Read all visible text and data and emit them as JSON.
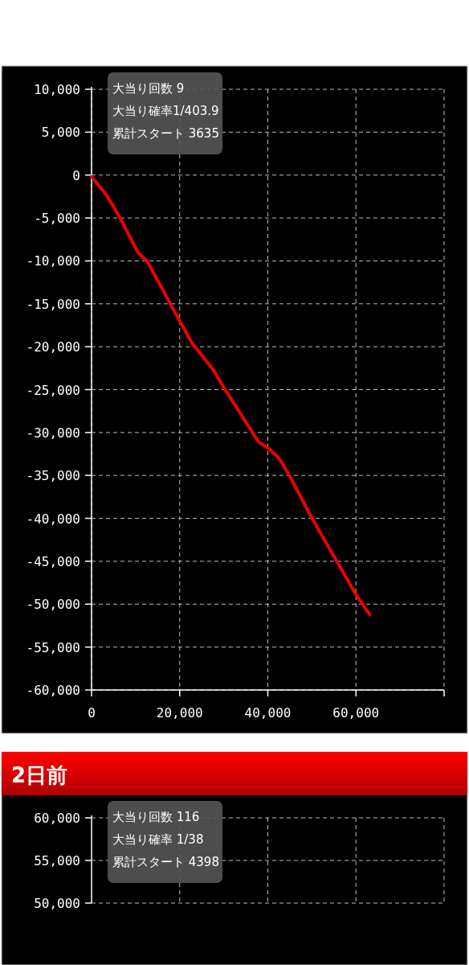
{
  "chart_data": [
    {
      "type": "line",
      "xlim": [
        0,
        80000
      ],
      "ylim": [
        -60000,
        10000
      ],
      "xticks": [
        {
          "value": 0,
          "label": "0"
        },
        {
          "value": 20000,
          "label": "20,000"
        },
        {
          "value": 40000,
          "label": "40,000"
        },
        {
          "value": 60000,
          "label": "60,000"
        },
        {
          "value": 80000,
          "label": null
        }
      ],
      "yticks": [
        {
          "value": 10000,
          "label": "10,000"
        },
        {
          "value": 5000,
          "label": "5,000"
        },
        {
          "value": 0,
          "label": "0"
        },
        {
          "value": -5000,
          "label": "-5,000"
        },
        {
          "value": -10000,
          "label": "-10,000"
        },
        {
          "value": -15000,
          "label": "-15,000"
        },
        {
          "value": -20000,
          "label": "-20,000"
        },
        {
          "value": -25000,
          "label": "-25,000"
        },
        {
          "value": -30000,
          "label": "-30,000"
        },
        {
          "value": -35000,
          "label": "-35,000"
        },
        {
          "value": -40000,
          "label": "-40,000"
        },
        {
          "value": -45000,
          "label": "-45,000"
        },
        {
          "value": -50000,
          "label": "-50,000"
        },
        {
          "value": -55000,
          "label": "-55,000"
        },
        {
          "value": -60000,
          "label": "-60,000"
        }
      ],
      "grid": true,
      "marker": "none",
      "line_style": "solid",
      "annotations": [
        "大当り回数 9",
        "大当り確率1/403.9",
        "累計スタート 3635"
      ],
      "series": [
        {
          "color": "#ee0000",
          "x": [
            0,
            3500,
            6500,
            10500,
            12700,
            20000,
            22700,
            27500,
            30300,
            37900,
            40000,
            42400,
            44900,
            49700,
            60000,
            63100
          ],
          "values": [
            -200,
            -2400,
            -5000,
            -9000,
            -10100,
            -17000,
            -19500,
            -22600,
            -25000,
            -31100,
            -31800,
            -32900,
            -35000,
            -39700,
            -48900,
            -51200
          ]
        }
      ]
    },
    {
      "type": "other",
      "title": "2日前",
      "annotations": [
        "大当り回数 116",
        "大当り確率 1/38",
        "累計スタート 4398",
        "60,000",
        "55,000",
        "50,000"
      ]
    }
  ]
}
